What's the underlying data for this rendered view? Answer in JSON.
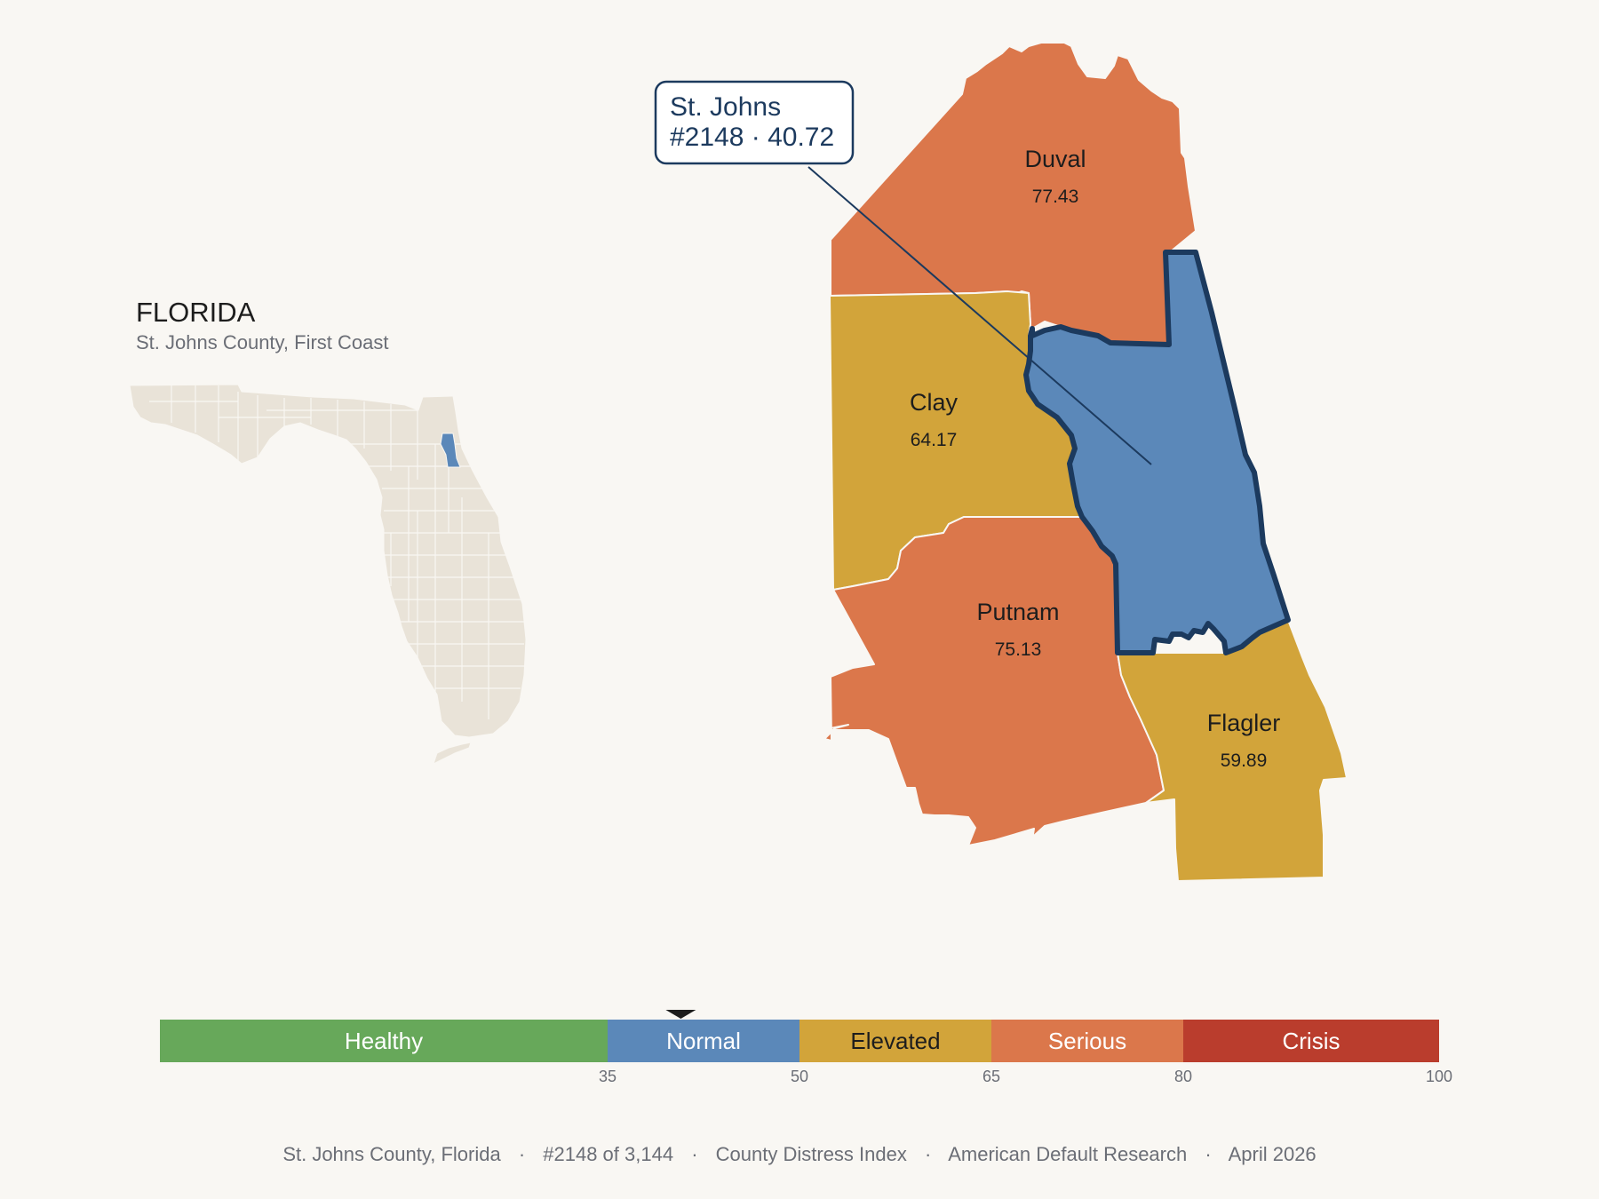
{
  "state": {
    "title": "FLORIDA",
    "subtitle": "St. Johns County, First Coast"
  },
  "callout": {
    "line1": "St. Johns",
    "line2": "#2148 · 40.72"
  },
  "counties": [
    {
      "id": "duval",
      "name": "Duval",
      "value": "77.43",
      "color": "#db774b"
    },
    {
      "id": "clay",
      "name": "Clay",
      "value": "64.17",
      "color": "#d2a43a"
    },
    {
      "id": "putnam",
      "name": "Putnam",
      "value": "75.13",
      "color": "#db774b"
    },
    {
      "id": "flagler",
      "name": "Flagler",
      "value": "59.89",
      "color": "#d2a43a"
    },
    {
      "id": "st-johns",
      "name": "St. Johns",
      "value": "40.72",
      "color": "#5b88b9",
      "rank": "#2148",
      "focus": true
    }
  ],
  "scale": {
    "min": 0,
    "max": 100,
    "marker_value": 40.72,
    "bands": [
      {
        "label": "Healthy",
        "from": 0,
        "to": 35,
        "color": "#67a85a",
        "text_color": "#ffffff"
      },
      {
        "label": "Normal",
        "from": 35,
        "to": 50,
        "color": "#5b88b9",
        "text_color": "#ffffff"
      },
      {
        "label": "Elevated",
        "from": 50,
        "to": 65,
        "color": "#d2a43a",
        "text_color": "#1d1d1d"
      },
      {
        "label": "Serious",
        "from": 65,
        "to": 80,
        "color": "#db774b",
        "text_color": "#ffffff"
      },
      {
        "label": "Crisis",
        "from": 80,
        "to": 100,
        "color": "#ba3d2d",
        "text_color": "#ffffff"
      }
    ],
    "ticks": [
      "35",
      "50",
      "65",
      "80",
      "100"
    ]
  },
  "footer": {
    "county": "St. Johns County, Florida",
    "rank": "#2148 of 3,144",
    "index": "County Distress Index",
    "source": "American Default Research",
    "date": "April 2026",
    "separator": "·"
  },
  "colors": {
    "background": "#f9f7f3",
    "focus_outline": "#1c3a5e",
    "inset_land": "#e9e3d8",
    "inset_highlight": "#5b88b9"
  }
}
